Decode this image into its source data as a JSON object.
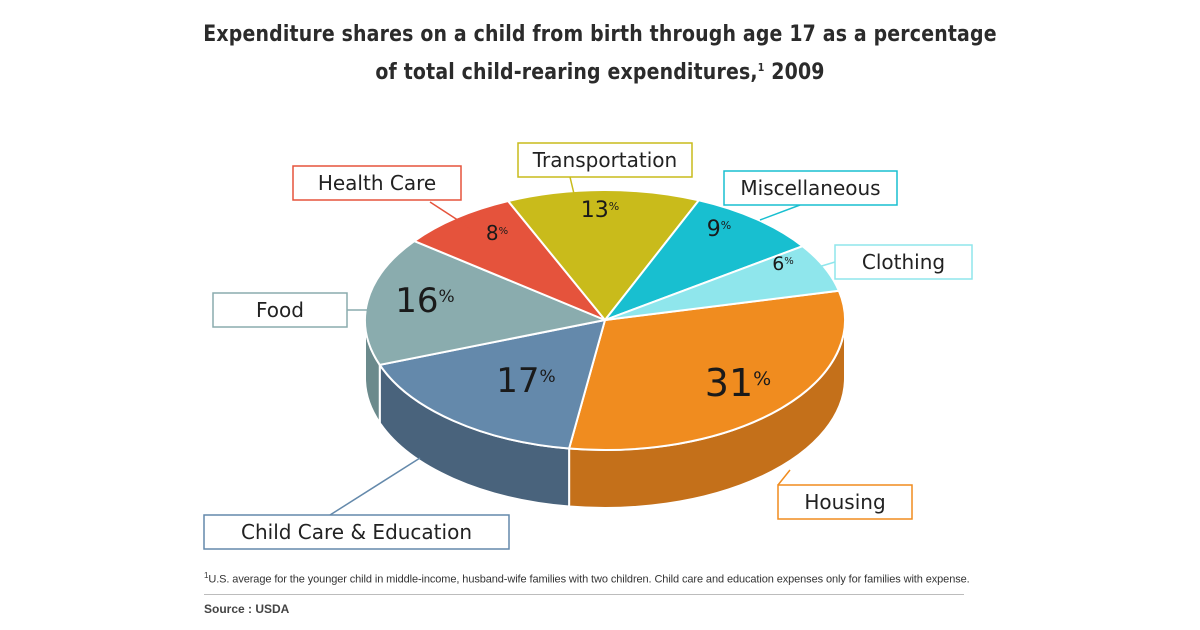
{
  "title_line1": "Expenditure shares on a child from birth through age 17 as a percentage",
  "title_line2": "of total child-rearing expenditures,",
  "title_sup": "1",
  "title_year": " 2009",
  "footnote_sup": "1",
  "footnote_text": "U.S. average for the younger child in middle-income, husband-wife families with two children. Child care and education expenses only for families with expense.",
  "source": "Source : USDA",
  "chart_data": {
    "type": "pie",
    "title": "Expenditure shares on a child from birth through age 17 as a percentage of total child-rearing expenditures, 2009",
    "unit": "%",
    "slices": [
      {
        "label": "Housing",
        "value": 31,
        "color": "#f08c1f",
        "side_color": "#c4701a"
      },
      {
        "label": "Child Care & Education",
        "value": 17,
        "color": "#6489ab",
        "side_color": "#49637c"
      },
      {
        "label": "Food",
        "value": 16,
        "color": "#8aacae",
        "side_color": "#6b8a8c"
      },
      {
        "label": "Health Care",
        "value": 8,
        "color": "#e5533c",
        "side_color": "#b43f2e"
      },
      {
        "label": "Transportation",
        "value": 13,
        "color": "#c9bb1b",
        "side_color": "#9f9315"
      },
      {
        "label": "Miscellaneous",
        "value": 9,
        "color": "#18bfd0",
        "side_color": "#1297a4"
      },
      {
        "label": "Clothing",
        "value": 6,
        "color": "#8fe6ec",
        "side_color": "#6cbdc2"
      }
    ]
  }
}
